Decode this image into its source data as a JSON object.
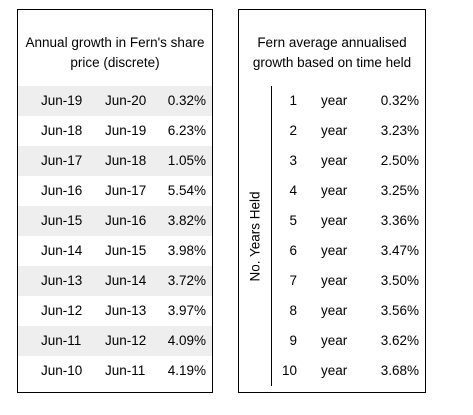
{
  "left_table": {
    "title": "Annual growth in Fern's share price (discrete)",
    "rows": [
      {
        "from": "Jun-19",
        "to": "Jun-20",
        "growth": "0.32%"
      },
      {
        "from": "Jun-18",
        "to": "Jun-19",
        "growth": "6.23%"
      },
      {
        "from": "Jun-17",
        "to": "Jun-18",
        "growth": "1.05%"
      },
      {
        "from": "Jun-16",
        "to": "Jun-17",
        "growth": "5.54%"
      },
      {
        "from": "Jun-15",
        "to": "Jun-16",
        "growth": "3.82%"
      },
      {
        "from": "Jun-14",
        "to": "Jun-15",
        "growth": "3.98%"
      },
      {
        "from": "Jun-13",
        "to": "Jun-14",
        "growth": "3.72%"
      },
      {
        "from": "Jun-12",
        "to": "Jun-13",
        "growth": "3.97%"
      },
      {
        "from": "Jun-11",
        "to": "Jun-12",
        "growth": "4.09%"
      },
      {
        "from": "Jun-10",
        "to": "Jun-11",
        "growth": "4.19%"
      }
    ]
  },
  "right_table": {
    "title": "Fern average annualised growth based on time held",
    "side_label": "No. Years Held",
    "rows": [
      {
        "years": "1",
        "unit": "year",
        "growth": "0.32%"
      },
      {
        "years": "2",
        "unit": "year",
        "growth": "3.23%"
      },
      {
        "years": "3",
        "unit": "year",
        "growth": "2.50%"
      },
      {
        "years": "4",
        "unit": "year",
        "growth": "3.25%"
      },
      {
        "years": "5",
        "unit": "year",
        "growth": "3.36%"
      },
      {
        "years": "6",
        "unit": "year",
        "growth": "3.47%"
      },
      {
        "years": "7",
        "unit": "year",
        "growth": "3.50%"
      },
      {
        "years": "8",
        "unit": "year",
        "growth": "3.56%"
      },
      {
        "years": "9",
        "unit": "year",
        "growth": "3.62%"
      },
      {
        "years": "10",
        "unit": "year",
        "growth": "3.68%"
      }
    ]
  },
  "colors": {
    "shaded_row": "#eeeeee",
    "border": "#000000"
  }
}
